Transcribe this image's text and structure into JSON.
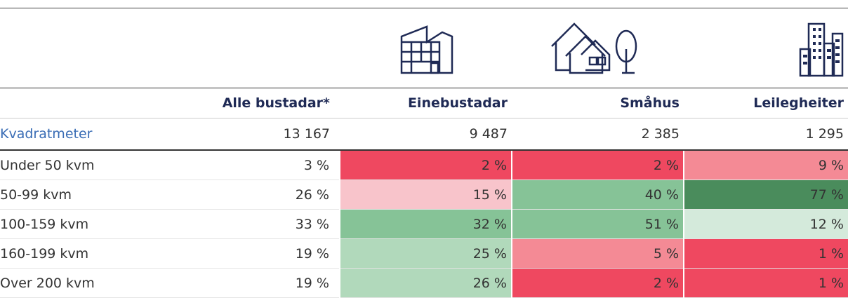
{
  "table": {
    "columns": [
      "Alle bustadar*",
      "Einebustadar",
      "Småhus",
      "Leilegheiter"
    ],
    "total": {
      "label": "Kvadratmeter",
      "values": [
        "13 167",
        "9 487",
        "2 385",
        "1 295"
      ]
    },
    "rows": [
      {
        "label": "Under 50 kvm",
        "values": [
          "3 %",
          "2 %",
          "2 %",
          "9 %"
        ],
        "colors": [
          "#ef4860",
          "#ef4860",
          "#f48a95"
        ]
      },
      {
        "label": "50-99 kvm",
        "values": [
          "26 %",
          "15 %",
          "40 %",
          "77 %"
        ],
        "colors": [
          "#f8c4cb",
          "#86c397",
          "#4a8c5c"
        ]
      },
      {
        "label": "100-159 kvm",
        "values": [
          "33 %",
          "32 %",
          "51 %",
          "12 %"
        ],
        "colors": [
          "#86c397",
          "#86c397",
          "#d4eadb"
        ]
      },
      {
        "label": "160-199 kvm",
        "values": [
          "19 %",
          "25 %",
          "5 %",
          "1 %"
        ],
        "colors": [
          "#b1d9bb",
          "#f48a95",
          "#ef4860"
        ]
      },
      {
        "label": "Over 200 kvm",
        "values": [
          "19 %",
          "26 %",
          "2 %",
          "1 %"
        ],
        "colors": [
          "#b1d9bb",
          "#ef4860",
          "#ef4860"
        ]
      }
    ]
  }
}
